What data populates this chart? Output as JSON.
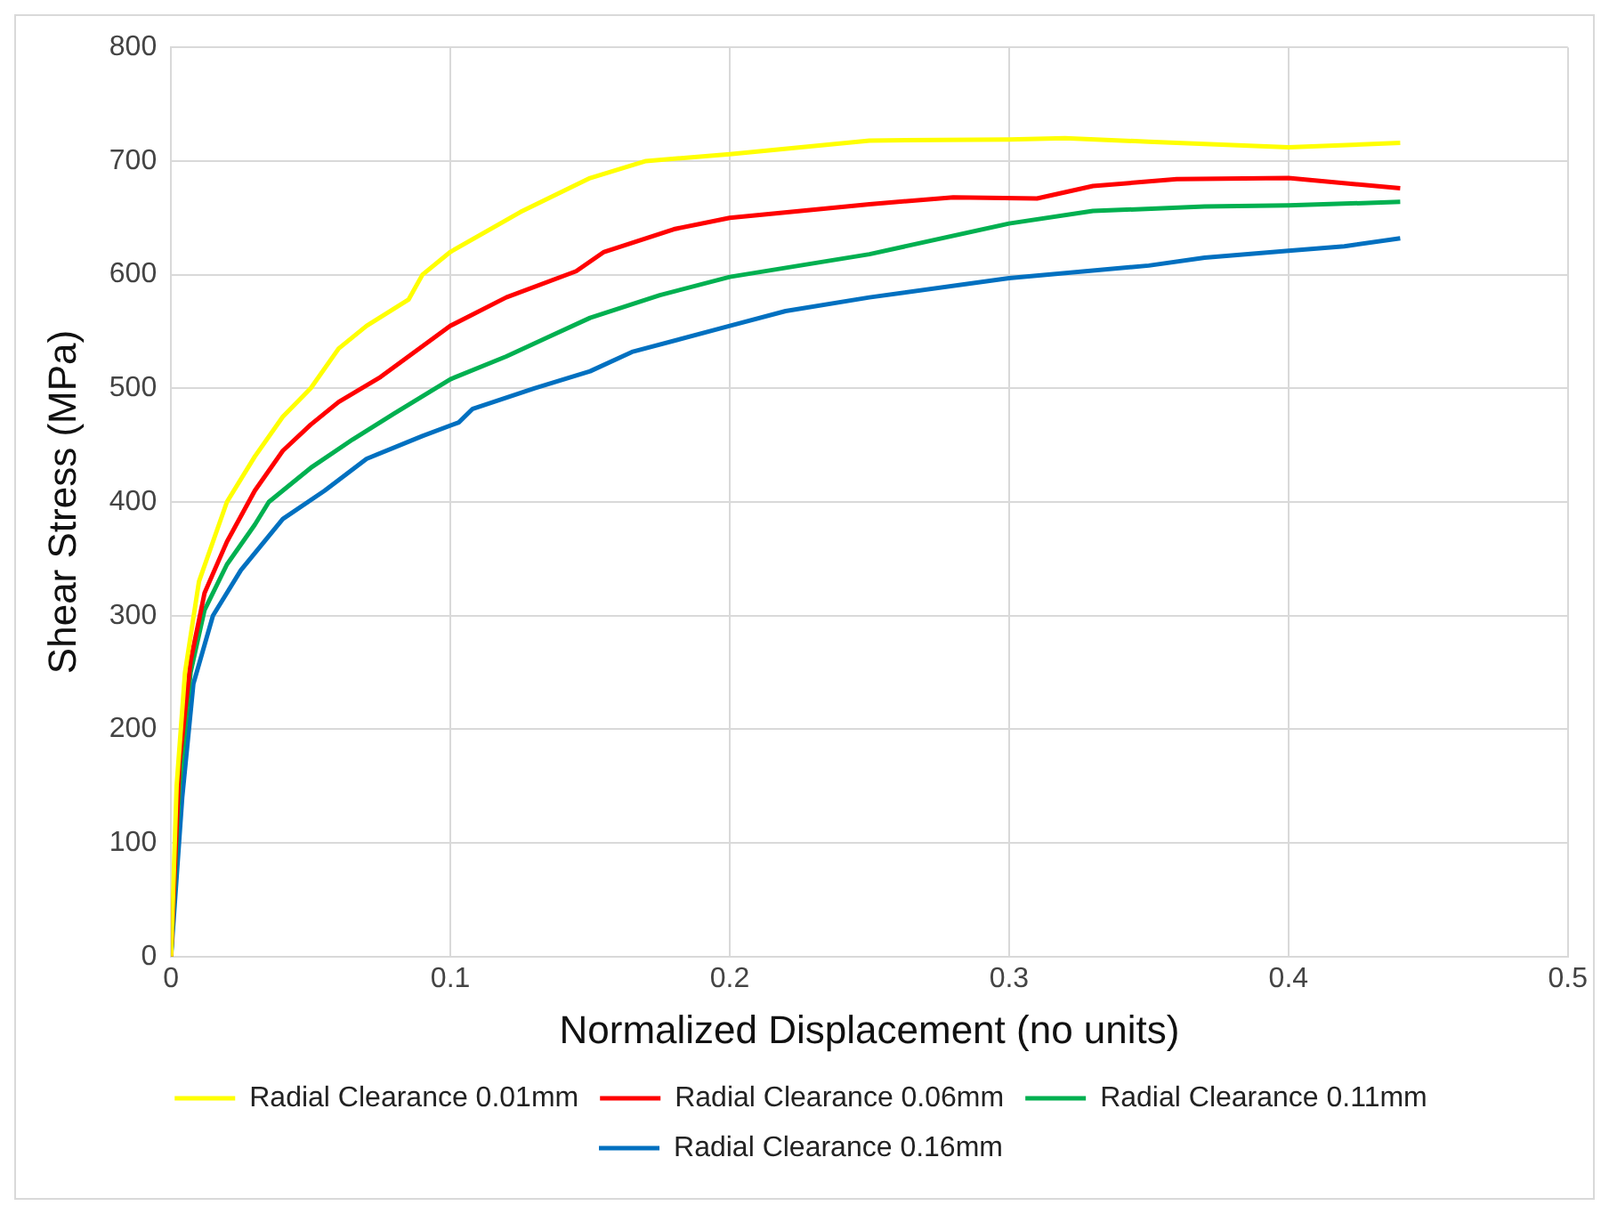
{
  "chart_data": {
    "type": "line",
    "xlabel": "Normalized Displacement (no units)",
    "ylabel": "Shear Stress (MPa)",
    "xlim": [
      0,
      0.5
    ],
    "xticks": [
      0,
      0.1,
      0.2,
      0.3,
      0.4,
      0.5
    ],
    "ylim": [
      0,
      800
    ],
    "yticks": [
      0,
      100,
      200,
      300,
      400,
      500,
      600,
      700,
      800
    ],
    "grid": true,
    "legend": "bottom",
    "marker": "none",
    "line_style": "solid",
    "series": [
      {
        "name": "Radial Clearance 0.01mm",
        "color": "#ffff00",
        "x": [
          0,
          0.002,
          0.005,
          0.01,
          0.02,
          0.03,
          0.04,
          0.05,
          0.06,
          0.07,
          0.085,
          0.09,
          0.1,
          0.125,
          0.15,
          0.17,
          0.2,
          0.25,
          0.3,
          0.32,
          0.35,
          0.4,
          0.44
        ],
        "values": [
          0,
          150,
          250,
          330,
          400,
          440,
          475,
          500,
          535,
          555,
          578,
          600,
          620,
          655,
          685,
          700,
          706,
          718,
          719,
          720,
          717,
          712,
          716
        ]
      },
      {
        "name": "Radial Clearance 0.06mm",
        "color": "#ff0000",
        "x": [
          0,
          0.003,
          0.007,
          0.012,
          0.02,
          0.03,
          0.04,
          0.05,
          0.06,
          0.075,
          0.1,
          0.12,
          0.145,
          0.155,
          0.18,
          0.2,
          0.25,
          0.28,
          0.31,
          0.33,
          0.36,
          0.4,
          0.44
        ],
        "values": [
          0,
          170,
          260,
          320,
          365,
          410,
          445,
          468,
          488,
          510,
          555,
          580,
          603,
          620,
          640,
          650,
          662,
          668,
          667,
          678,
          684,
          685,
          676
        ]
      },
      {
        "name": "Radial Clearance 0.11mm",
        "color": "#00b050",
        "x": [
          0,
          0.003,
          0.007,
          0.012,
          0.02,
          0.03,
          0.035,
          0.05,
          0.065,
          0.08,
          0.1,
          0.12,
          0.135,
          0.15,
          0.175,
          0.2,
          0.25,
          0.3,
          0.33,
          0.37,
          0.4,
          0.44
        ],
        "values": [
          0,
          150,
          250,
          305,
          345,
          380,
          400,
          430,
          455,
          478,
          508,
          528,
          545,
          562,
          582,
          598,
          618,
          645,
          656,
          660,
          661,
          664
        ]
      },
      {
        "name": "Radial Clearance 0.16mm",
        "color": "#0070c0",
        "x": [
          0,
          0.004,
          0.008,
          0.015,
          0.025,
          0.04,
          0.055,
          0.07,
          0.09,
          0.103,
          0.108,
          0.13,
          0.15,
          0.165,
          0.2,
          0.22,
          0.25,
          0.3,
          0.35,
          0.37,
          0.4,
          0.42,
          0.44
        ],
        "values": [
          0,
          140,
          240,
          300,
          340,
          385,
          410,
          438,
          458,
          470,
          482,
          500,
          515,
          532,
          555,
          568,
          580,
          597,
          608,
          615,
          621,
          625,
          632
        ]
      }
    ]
  }
}
